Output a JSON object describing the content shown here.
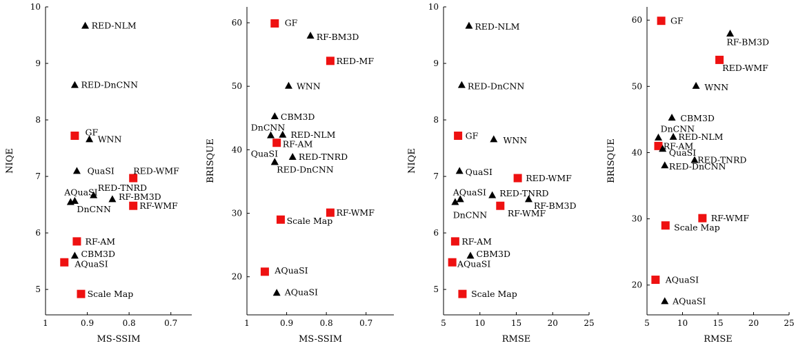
{
  "colors": {
    "square": "#ee1111",
    "triangle": "#000000"
  },
  "chart_data": [
    {
      "type": "scatter",
      "xlabel": "MS-SSIM",
      "ylabel": "NIQE",
      "xlim": [
        1.0,
        0.65
      ],
      "ylim": [
        4.55,
        10.0
      ],
      "xticks": [
        1,
        0.9,
        0.8,
        0.7
      ],
      "xtick_labels": [
        "1",
        "0.9",
        "0.8",
        "0.7"
      ],
      "yticks": [
        5,
        6,
        7,
        8,
        9,
        10
      ],
      "ytick_labels": [
        "5",
        "6",
        "7",
        "8",
        "9",
        "10"
      ],
      "grid": false,
      "points": [
        {
          "label": "RED-NLM",
          "marker": "triangle",
          "x": 0.905,
          "y": 9.67,
          "lx": 0.89,
          "ly": 9.67,
          "anchor": "start"
        },
        {
          "label": "RED-DnCNN",
          "marker": "triangle",
          "x": 0.93,
          "y": 8.62,
          "lx": 0.915,
          "ly": 8.62,
          "anchor": "start"
        },
        {
          "label": "GF",
          "marker": "square",
          "x": 0.93,
          "y": 7.72,
          "lx": 0.905,
          "ly": 7.78,
          "anchor": "start"
        },
        {
          "label": "WNN",
          "marker": "triangle",
          "x": 0.895,
          "y": 7.66,
          "lx": 0.875,
          "ly": 7.66,
          "anchor": "start"
        },
        {
          "label": "QuaSI",
          "marker": "triangle",
          "x": 0.925,
          "y": 7.1,
          "lx": 0.9,
          "ly": 7.1,
          "anchor": "start"
        },
        {
          "label": "RED-WMF",
          "marker": "square",
          "x": 0.79,
          "y": 6.97,
          "lx": 0.79,
          "ly": 7.1,
          "anchor": "start"
        },
        {
          "label": "AQuaSI",
          "marker": "triangle",
          "x": 0.94,
          "y": 6.55,
          "lx": 0.955,
          "ly": 6.72,
          "anchor": "start"
        },
        {
          "label": "RED-TNRD",
          "marker": "triangle",
          "x": 0.885,
          "y": 6.67,
          "lx": 0.875,
          "ly": 6.8,
          "anchor": "start"
        },
        {
          "label": "RF-BM3D",
          "marker": "triangle",
          "x": 0.84,
          "y": 6.6,
          "lx": 0.825,
          "ly": 6.64,
          "anchor": "start"
        },
        {
          "label": "RF-WMF",
          "marker": "square",
          "x": 0.79,
          "y": 6.48,
          "lx": 0.775,
          "ly": 6.48,
          "anchor": "start"
        },
        {
          "label": "DnCNN",
          "marker": "triangle",
          "x": 0.93,
          "y": 6.57,
          "lx": 0.925,
          "ly": 6.42,
          "anchor": "start"
        },
        {
          "label": "RF-AM",
          "marker": "square",
          "x": 0.925,
          "y": 5.85,
          "lx": 0.905,
          "ly": 5.85,
          "anchor": "start"
        },
        {
          "label": "CBM3D",
          "marker": "triangle",
          "x": 0.93,
          "y": 5.6,
          "lx": 0.915,
          "ly": 5.63,
          "anchor": "start"
        },
        {
          "label": "AQuaSI",
          "marker": "square",
          "x": 0.955,
          "y": 5.48,
          "lx": 0.93,
          "ly": 5.45,
          "anchor": "start"
        },
        {
          "label": "Scale Map",
          "marker": "square",
          "x": 0.915,
          "y": 4.92,
          "lx": 0.9,
          "ly": 4.92,
          "anchor": "start"
        }
      ]
    },
    {
      "type": "scatter",
      "xlabel": "MS-SSIM",
      "ylabel": "BRISQUE",
      "xlim": [
        1.0,
        0.63
      ],
      "ylim": [
        14.0,
        62.5
      ],
      "xticks": [
        1,
        0.9,
        0.8,
        0.7
      ],
      "xtick_labels": [
        "1",
        "0.9",
        "0.8",
        "0.7"
      ],
      "yticks": [
        20,
        30,
        40,
        50,
        60
      ],
      "ytick_labels": [
        "20",
        "30",
        "40",
        "50",
        "60"
      ],
      "grid": false,
      "points": [
        {
          "label": "GF",
          "marker": "square",
          "x": 0.93,
          "y": 59.9,
          "lx": 0.905,
          "ly": 60.0,
          "anchor": "start"
        },
        {
          "label": "RF-BM3D",
          "marker": "triangle",
          "x": 0.84,
          "y": 58.0,
          "lx": 0.825,
          "ly": 57.8,
          "anchor": "start"
        },
        {
          "label": "RED-MF",
          "marker": "square",
          "x": 0.79,
          "y": 54.0,
          "lx": 0.775,
          "ly": 54.0,
          "anchor": "start"
        },
        {
          "label": "WNN",
          "marker": "triangle",
          "x": 0.895,
          "y": 50.1,
          "lx": 0.875,
          "ly": 50.0,
          "anchor": "start"
        },
        {
          "label": "CBM3D",
          "marker": "triangle",
          "x": 0.93,
          "y": 45.3,
          "lx": 0.915,
          "ly": 45.2,
          "anchor": "start"
        },
        {
          "label": "DnCNN",
          "marker": "triangle",
          "x": 0.94,
          "y": 42.3,
          "lx": 0.99,
          "ly": 43.5,
          "anchor": "start"
        },
        {
          "label": "RED-NLM",
          "marker": "triangle",
          "x": 0.91,
          "y": 42.4,
          "lx": 0.89,
          "ly": 42.4,
          "anchor": "start"
        },
        {
          "label": "RF-AM",
          "marker": "square",
          "x": 0.925,
          "y": 41.1,
          "lx": 0.91,
          "ly": 40.9,
          "anchor": "start"
        },
        {
          "label": "QuaSI",
          "marker": "triangle",
          "x": 0.93,
          "y": 38.1,
          "lx": 0.99,
          "ly": 39.4,
          "anchor": "start"
        },
        {
          "label": "RED-TNRD",
          "marker": "triangle",
          "x": 0.885,
          "y": 38.9,
          "lx": 0.87,
          "ly": 38.9,
          "anchor": "start"
        },
        {
          "label": "RED-DnCNN",
          "marker": "triangle",
          "x": 0.93,
          "y": 38.1,
          "lx": 0.925,
          "ly": 36.9,
          "anchor": "start"
        },
        {
          "label": "RF-WMF",
          "marker": "square",
          "x": 0.79,
          "y": 30.1,
          "lx": 0.775,
          "ly": 30.1,
          "anchor": "start"
        },
        {
          "label": "Scale Map",
          "marker": "square",
          "x": 0.915,
          "y": 29.0,
          "lx": 0.9,
          "ly": 28.8,
          "anchor": "start"
        },
        {
          "label": "AQuaSI",
          "marker": "square",
          "x": 0.955,
          "y": 20.8,
          "lx": 0.93,
          "ly": 21.0,
          "anchor": "start"
        },
        {
          "label": "AQuaSI",
          "marker": "triangle",
          "x": 0.925,
          "y": 17.5,
          "lx": 0.905,
          "ly": 17.6,
          "anchor": "start"
        }
      ]
    },
    {
      "type": "scatter",
      "xlabel": "RMSE",
      "ylabel": "NIQE",
      "xlim": [
        5,
        25
      ],
      "ylim": [
        4.55,
        10.0
      ],
      "xticks": [
        5,
        10,
        15,
        20,
        25
      ],
      "xtick_labels": [
        "5",
        "10",
        "15",
        "20",
        "25"
      ],
      "yticks": [
        5,
        6,
        7,
        8,
        9,
        10
      ],
      "ytick_labels": [
        "5",
        "6",
        "7",
        "8",
        "9",
        "10"
      ],
      "grid": false,
      "points": [
        {
          "label": "RED-NLM",
          "marker": "triangle",
          "x": 8.5,
          "y": 9.67,
          "lx": 9.3,
          "ly": 9.65,
          "anchor": "start"
        },
        {
          "label": "RED-DnCNN",
          "marker": "triangle",
          "x": 7.5,
          "y": 8.62,
          "lx": 8.3,
          "ly": 8.6,
          "anchor": "start"
        },
        {
          "label": "GF",
          "marker": "square",
          "x": 7.0,
          "y": 7.72,
          "lx": 8.0,
          "ly": 7.72,
          "anchor": "start"
        },
        {
          "label": "WNN",
          "marker": "triangle",
          "x": 11.9,
          "y": 7.66,
          "lx": 13.2,
          "ly": 7.64,
          "anchor": "start"
        },
        {
          "label": "QuaSI",
          "marker": "triangle",
          "x": 7.2,
          "y": 7.1,
          "lx": 8.0,
          "ly": 7.08,
          "anchor": "start"
        },
        {
          "label": "RED-WMF",
          "marker": "square",
          "x": 15.2,
          "y": 6.97,
          "lx": 16.3,
          "ly": 6.97,
          "anchor": "start"
        },
        {
          "label": "AQuaSI",
          "marker": "triangle",
          "x": 7.3,
          "y": 6.6,
          "lx": 6.3,
          "ly": 6.72,
          "anchor": "start"
        },
        {
          "label": "RED-TNRD",
          "marker": "triangle",
          "x": 11.7,
          "y": 6.67,
          "lx": 12.7,
          "ly": 6.7,
          "anchor": "start"
        },
        {
          "label": "DnCNN",
          "marker": "triangle",
          "x": 6.6,
          "y": 6.55,
          "lx": 6.3,
          "ly": 6.32,
          "anchor": "start"
        },
        {
          "label": "RF-WMF",
          "marker": "square",
          "x": 12.8,
          "y": 6.48,
          "lx": 13.8,
          "ly": 6.35,
          "anchor": "start"
        },
        {
          "label": "RF-BM3D",
          "marker": "triangle",
          "x": 16.7,
          "y": 6.6,
          "lx": 17.4,
          "ly": 6.48,
          "anchor": "start"
        },
        {
          "label": "RF-AM",
          "marker": "square",
          "x": 6.6,
          "y": 5.85,
          "lx": 7.5,
          "ly": 5.85,
          "anchor": "start"
        },
        {
          "label": "CBM3D",
          "marker": "triangle",
          "x": 8.7,
          "y": 5.6,
          "lx": 9.5,
          "ly": 5.63,
          "anchor": "start"
        },
        {
          "label": "AQuaSI",
          "marker": "square",
          "x": 6.2,
          "y": 5.48,
          "lx": 6.9,
          "ly": 5.45,
          "anchor": "start"
        },
        {
          "label": "Scale Map",
          "marker": "square",
          "x": 7.6,
          "y": 4.92,
          "lx": 8.8,
          "ly": 4.92,
          "anchor": "start"
        }
      ]
    },
    {
      "type": "scatter",
      "xlabel": "RMSE",
      "ylabel": "BRISQUE",
      "xlim": [
        5,
        25
      ],
      "ylim": [
        15.5,
        62.0
      ],
      "xticks": [
        5,
        10,
        15,
        20,
        25
      ],
      "xtick_labels": [
        "5",
        "10",
        "15",
        "20",
        "25"
      ],
      "yticks": [
        20,
        30,
        40,
        50,
        60
      ],
      "ytick_labels": [
        "20",
        "30",
        "40",
        "50",
        "60"
      ],
      "grid": false,
      "points": [
        {
          "label": "GF",
          "marker": "square",
          "x": 7.0,
          "y": 59.9,
          "lx": 8.3,
          "ly": 59.9,
          "anchor": "start"
        },
        {
          "label": "RF-BM3D",
          "marker": "triangle",
          "x": 16.7,
          "y": 58.0,
          "lx": 16.2,
          "ly": 56.7,
          "anchor": "start"
        },
        {
          "label": "RED-WMF",
          "marker": "square",
          "x": 15.2,
          "y": 54.0,
          "lx": 15.6,
          "ly": 52.8,
          "anchor": "start"
        },
        {
          "label": "WNN",
          "marker": "triangle",
          "x": 11.9,
          "y": 50.1,
          "lx": 13.1,
          "ly": 49.9,
          "anchor": "start"
        },
        {
          "label": "CBM3D",
          "marker": "triangle",
          "x": 8.5,
          "y": 45.3,
          "lx": 9.7,
          "ly": 45.2,
          "anchor": "start"
        },
        {
          "label": "DnCNN",
          "marker": "triangle",
          "x": 6.6,
          "y": 42.3,
          "lx": 6.9,
          "ly": 43.6,
          "anchor": "start"
        },
        {
          "label": "RED-NLM",
          "marker": "triangle",
          "x": 8.7,
          "y": 42.4,
          "lx": 9.4,
          "ly": 42.4,
          "anchor": "start"
        },
        {
          "label": "RF-AM",
          "marker": "square",
          "x": 6.6,
          "y": 41.0,
          "lx": 7.3,
          "ly": 41.0,
          "anchor": "start"
        },
        {
          "label": "QuaSI",
          "marker": "triangle",
          "x": 7.2,
          "y": 40.6,
          "lx": 8.1,
          "ly": 40.0,
          "anchor": "start"
        },
        {
          "label": "RED-TNRD",
          "marker": "triangle",
          "x": 11.7,
          "y": 38.9,
          "lx": 12.1,
          "ly": 38.9,
          "anchor": "start"
        },
        {
          "label": "RED-DnCNN",
          "marker": "triangle",
          "x": 7.5,
          "y": 38.1,
          "lx": 8.1,
          "ly": 37.9,
          "anchor": "start"
        },
        {
          "label": "RF-WMF",
          "marker": "square",
          "x": 12.8,
          "y": 30.1,
          "lx": 14.0,
          "ly": 30.1,
          "anchor": "start"
        },
        {
          "label": "Scale Map",
          "marker": "square",
          "x": 7.6,
          "y": 29.0,
          "lx": 8.8,
          "ly": 28.7,
          "anchor": "start"
        },
        {
          "label": "AQuaSI",
          "marker": "square",
          "x": 6.2,
          "y": 20.8,
          "lx": 7.6,
          "ly": 20.8,
          "anchor": "start"
        },
        {
          "label": "AQuaSI",
          "marker": "triangle",
          "x": 7.5,
          "y": 17.6,
          "lx": 8.6,
          "ly": 17.6,
          "anchor": "start"
        }
      ]
    }
  ]
}
